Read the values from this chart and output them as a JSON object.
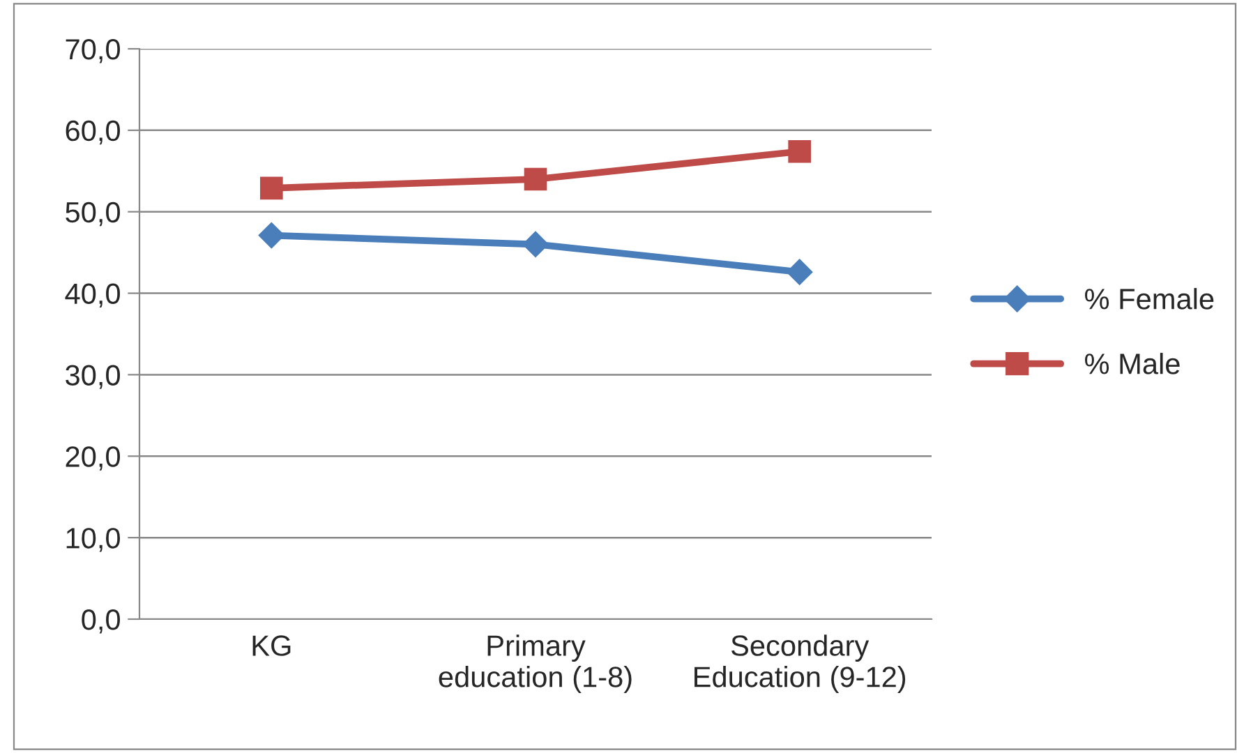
{
  "chart_data": {
    "type": "line",
    "categories": [
      "KG",
      "Primary\neducation (1-8)",
      "Secondary\nEducation (9-12)"
    ],
    "series": [
      {
        "name": "% Female",
        "color": "#4a7ebb",
        "marker": "diamond",
        "values": [
          47.1,
          46.0,
          42.6
        ]
      },
      {
        "name": "% Male",
        "color": "#be4b48",
        "marker": "square",
        "values": [
          52.9,
          54.0,
          57.4
        ]
      }
    ],
    "ylim": [
      0,
      70
    ],
    "yticks": [
      {
        "value": 0,
        "label": "0,0"
      },
      {
        "value": 10,
        "label": "10,0"
      },
      {
        "value": 20,
        "label": "20,0"
      },
      {
        "value": 30,
        "label": "30,0"
      },
      {
        "value": 40,
        "label": "40,0"
      },
      {
        "value": 50,
        "label": "50,0"
      },
      {
        "value": 60,
        "label": "60,0"
      },
      {
        "value": 70,
        "label": "70,0"
      }
    ],
    "grid": "y",
    "legend": "right",
    "line_style": "solid"
  }
}
